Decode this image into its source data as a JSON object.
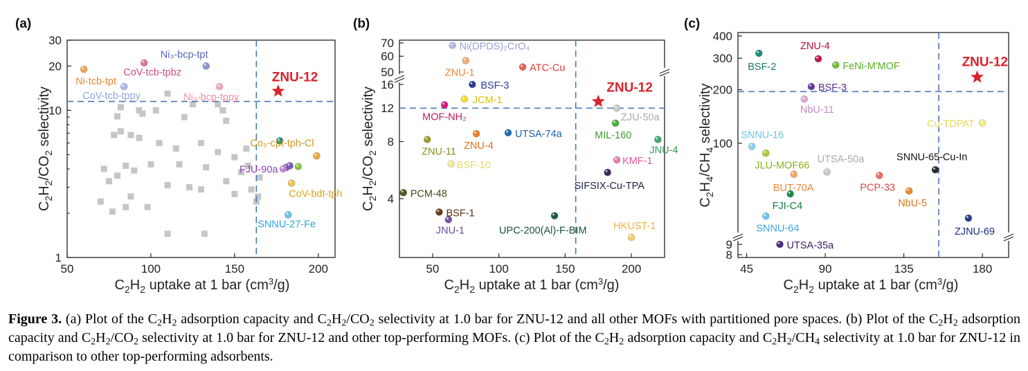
{
  "colors": {
    "dash": "#4a76b5",
    "star": "#d9232b",
    "square": "#c6c6c6",
    "axis": "#222222"
  },
  "caption": {
    "label": "Figure 3.",
    "s1": "(a) Plot of the C",
    "s2": "H",
    "s3": " adsorption capacity and C",
    "s4": "H",
    "s5": "/CO",
    "s6": " selectivity at 1.0 bar for ZNU-12 and all other MOFs with partitioned pore spaces. (b) Plot of the C",
    "s7": "H",
    "s8": " adsorption capacity and C",
    "s9": "H",
    "s10": "/CO",
    "s11": " selectivity at 1.0 bar for ZNU-12 and other top-performing MOFs. (c) Plot of the C",
    "s12": "H",
    "s13": " adsorption capacity and C",
    "s14": "H",
    "s15": "/CH",
    "s16": " selectivity at 1.0 bar for ZNU-12 in comparison to other top-performing adsorbents.",
    "sub2": "2",
    "sub4": "4"
  },
  "chart_data": [
    {
      "type": "scatter",
      "panel": "(a)",
      "xlabel": "C₂H₂ uptake at 1 bar (cm³/g)",
      "ylabel": "C₂H₂/CO₂ selectivity",
      "xlim": [
        50,
        210
      ],
      "ylim": [
        1,
        30
      ],
      "yscale": "log",
      "xticks": [
        "50",
        "100",
        "150",
        "200"
      ],
      "yticks": [
        "1",
        "10",
        "20",
        "30"
      ],
      "thresholds": {
        "x": 163,
        "y": 11.5
      },
      "highlight": {
        "name": "ZNU-12",
        "x": 176,
        "y": 13.5
      },
      "points": [
        {
          "name": "Ni-tcb-tpt",
          "x": 60,
          "y": 19,
          "color": "#f0a35a",
          "label": "Ni-tcb-tpt",
          "lc": "#e58a2e"
        },
        {
          "name": "CoV-tcb-tpbz",
          "x": 96,
          "y": 21,
          "color": "#e2739b",
          "label": "CoV-tcb-tpbz",
          "lc": "#d04e86"
        },
        {
          "name": "Ni3-bcp-tpt",
          "x": 133,
          "y": 20,
          "color": "#8f97d2",
          "label": "Ni₃-bcp-tpt",
          "lc": "#5a66b8"
        },
        {
          "name": "CoV-tcb-tppy",
          "x": 84,
          "y": 14.5,
          "color": "#a9bde6",
          "label": "CoV-tcb-tppy",
          "lc": "#8aa5dc"
        },
        {
          "name": "Ni3-bcp-tppy",
          "x": 141,
          "y": 14.5,
          "color": "#f5a8b8",
          "label": "Ni₃-bcp-tppy",
          "lc": "#f08ca3"
        },
        {
          "name": "Co3-cpt-tph-Cl",
          "x": 177,
          "y": 6.2,
          "color": "#1f8a78",
          "label": "",
          "lc": "#1f8a78"
        },
        {
          "name": "Co3-cpt-tph-Cl-b",
          "x": 199,
          "y": 4.9,
          "color": "#e9a93a",
          "label": "Co₃-cpt-tph-Cl",
          "lc": "#c99a1c"
        },
        {
          "name": "FJU-90a",
          "x": 181,
          "y": 4.1,
          "color": "#9b59b6",
          "label": "FJU-90a",
          "lc": "#8e44ad"
        },
        {
          "name": "FJU-90a-b",
          "x": 183,
          "y": 4.2,
          "color": "#7c5ab8",
          "label": "",
          "lc": "#7c5ab8"
        },
        {
          "name": "FJU-90a-c",
          "x": 179,
          "y": 4.0,
          "color": "#c08bd6",
          "label": "",
          "lc": "#c08bd6"
        },
        {
          "name": "FJU-90a-d",
          "x": 188,
          "y": 4.15,
          "color": "#8cc63f",
          "label": "",
          "lc": "#8cc63f"
        },
        {
          "name": "CoV-bdt-tph",
          "x": 184,
          "y": 3.2,
          "color": "#f2c14e",
          "label": "CoV-bdt-tph",
          "lc": "#d9a21b"
        },
        {
          "name": "SNNU-27-Fe",
          "x": 182,
          "y": 1.95,
          "color": "#6ec6e6",
          "label": "SNNU-27-Fe",
          "lc": "#2fa6d8"
        }
      ],
      "squares": [
        [
          110,
          13
        ],
        [
          125,
          11
        ],
        [
          140,
          11
        ],
        [
          82,
          10.5
        ],
        [
          93,
          10
        ],
        [
          103,
          10
        ],
        [
          143,
          10
        ],
        [
          80,
          9.1
        ],
        [
          95,
          9.5
        ],
        [
          120,
          9
        ],
        [
          145,
          8.5
        ],
        [
          82,
          7.2
        ],
        [
          88,
          6.8
        ],
        [
          78,
          6.8
        ],
        [
          93,
          6.5
        ],
        [
          105,
          6
        ],
        [
          130,
          6
        ],
        [
          115,
          5.5
        ],
        [
          157,
          5.5
        ],
        [
          140,
          5.2
        ],
        [
          150,
          4.8
        ],
        [
          72,
          4
        ],
        [
          85,
          4.2
        ],
        [
          100,
          4.3
        ],
        [
          117,
          4.3
        ],
        [
          133,
          4.1
        ],
        [
          158,
          4.2
        ],
        [
          90,
          3.9
        ],
        [
          80,
          3.6
        ],
        [
          154,
          3.8
        ],
        [
          165,
          3.5
        ],
        [
          75,
          3.3
        ],
        [
          145,
          3.3
        ],
        [
          110,
          3.1
        ],
        [
          123,
          3.0
        ],
        [
          130,
          2.9
        ],
        [
          160,
          2.9
        ],
        [
          88,
          2.6
        ],
        [
          150,
          2.7
        ],
        [
          164,
          2.6
        ],
        [
          70,
          2.4
        ],
        [
          163,
          2.4
        ],
        [
          85,
          2.2
        ],
        [
          98,
          2.2
        ],
        [
          77,
          2.05
        ],
        [
          110,
          1.45
        ],
        [
          132,
          1.45
        ]
      ]
    },
    {
      "type": "scatter",
      "panel": "(b)",
      "xlabel": "C₂H₂ uptake at 1 bar (cm³/g)",
      "ylabel": "C₂H₂/CO₂ selectivity",
      "xlim": [
        25,
        225
      ],
      "yscale": "log-broken",
      "xticks": [
        "50",
        "100",
        "150",
        "200"
      ],
      "yticks": [
        "4",
        "8",
        "12",
        "16",
        "50",
        "60",
        "70"
      ],
      "thresholds": {
        "x": 158,
        "y": 12
      },
      "highlight": {
        "name": "ZNU-12",
        "x": 175,
        "y": 13
      },
      "points": [
        {
          "name": "Ni(DPDS)2CrO4",
          "x": 65,
          "y": 68,
          "color": "#b4b8dc",
          "label": "Ni(DPDS)₂CrO₄",
          "lc": "#9aa0cf"
        },
        {
          "name": "ZNU-1",
          "x": 75,
          "y": 57,
          "color": "#f2ae74",
          "label": "ZNU-1",
          "lc": "#e8883a"
        },
        {
          "name": "ATC-Cu",
          "x": 118,
          "y": 53,
          "color": "#e8605a",
          "label": "ATC-Cu",
          "lc": "#dd3b32"
        },
        {
          "name": "BSF-3",
          "x": 80,
          "y": 16,
          "color": "#2c3e91",
          "label": "BSF-3",
          "lc": "#2c3e91"
        },
        {
          "name": "JCM-1",
          "x": 74,
          "y": 13.4,
          "color": "#f5e02c",
          "label": "JCM-1",
          "lc": "#d8c400"
        },
        {
          "name": "MOF-NH2",
          "x": 59,
          "y": 12.5,
          "color": "#d81b7b",
          "label": "MOF-NH₂",
          "lc": "#c2185b"
        },
        {
          "name": "ZJU-50a",
          "x": 189,
          "y": 12,
          "color": "#c8c8c8",
          "label": "ZJU-50a",
          "lc": "#aaaaaa"
        },
        {
          "name": "MIL-160",
          "x": 188,
          "y": 10,
          "color": "#4cae3a",
          "label": "MIL-160",
          "lc": "#3d9b2c"
        },
        {
          "name": "UTSA-74a",
          "x": 107,
          "y": 8.9,
          "color": "#1f6fb5",
          "label": "UTSA-74a",
          "lc": "#1f5ea8"
        },
        {
          "name": "ZNU-4",
          "x": 83,
          "y": 8.8,
          "color": "#e8832a",
          "label": "ZNU-4",
          "lc": "#e0701a"
        },
        {
          "name": "ZNU-11",
          "x": 46,
          "y": 8.2,
          "color": "#9e9a2c",
          "label": "ZNU-11",
          "lc": "#8e8a1c"
        },
        {
          "name": "JNU-4",
          "x": 220,
          "y": 8.2,
          "color": "#3aaa6a",
          "label": "JNU-4",
          "lc": "#2e9a5a"
        },
        {
          "name": "KMF-1",
          "x": 189,
          "y": 6.4,
          "color": "#e77fb0",
          "label": "KMF-1",
          "lc": "#e05a9c"
        },
        {
          "name": "BSF-10",
          "x": 64,
          "y": 6.1,
          "color": "#f3ec9a",
          "label": "BSF-10",
          "lc": "#e4d870"
        },
        {
          "name": "SIFSIX-Cu-TPA",
          "x": 182,
          "y": 5.5,
          "color": "#3a2a5a",
          "label": "SIFSIX-Cu-TPA",
          "lc": "#222244"
        },
        {
          "name": "PCM-48",
          "x": 28,
          "y": 4.3,
          "color": "#4d5a1f",
          "label": "PCM-48",
          "lc": "#3e4a14"
        },
        {
          "name": "BSF-1",
          "x": 55,
          "y": 3.4,
          "color": "#6d3b1a",
          "label": "BSF-1",
          "lc": "#5a2e10"
        },
        {
          "name": "JNU-1",
          "x": 62,
          "y": 3.1,
          "color": "#7a56a8",
          "label": "JNU-1",
          "lc": "#6a4a9a"
        },
        {
          "name": "UPC-200(Al)-F-BIM",
          "x": 142,
          "y": 3.25,
          "color": "#1a6040",
          "label": "UPC-200(Al)-F-BIM",
          "lc": "#145234"
        },
        {
          "name": "HKUST-1",
          "x": 200,
          "y": 2.5,
          "color": "#f3cf78",
          "label": "HKUST-1",
          "lc": "#e8b53e"
        }
      ]
    },
    {
      "type": "scatter",
      "panel": "(c)",
      "xlabel": "C₂H₂ uptake at 1 bar (cm³/g)",
      "ylabel": "C₂H₄/CH₄ selectivity",
      "xlim": [
        40,
        195
      ],
      "yscale": "log-broken",
      "xticks": [
        "45",
        "90",
        "135",
        "180"
      ],
      "yticks": [
        "8",
        "9",
        "100",
        "200",
        "300",
        "400"
      ],
      "thresholds": {
        "x": 155,
        "y": 195
      },
      "highlight": {
        "name": "ZNU-12",
        "x": 177,
        "y": 235
      },
      "points": [
        {
          "name": "BSF-2",
          "x": 52,
          "y": 320,
          "color": "#1f8a78",
          "label": "BSF-2",
          "lc": "#1a7a6a"
        },
        {
          "name": "ZNU-4",
          "x": 86,
          "y": 298,
          "color": "#c0184a",
          "label": "ZNU-4",
          "lc": "#b0103f"
        },
        {
          "name": "FeNi-M'MOF",
          "x": 96,
          "y": 275,
          "color": "#6fbf3a",
          "label": "FeNi-M'MOF",
          "lc": "#5aae28"
        },
        {
          "name": "BSF-3",
          "x": 82,
          "y": 208,
          "color": "#6a3a9a",
          "label": "BSF-3",
          "lc": "#5a2c8a"
        },
        {
          "name": "NbU-11",
          "x": 78,
          "y": 177,
          "color": "#d8a8d8",
          "label": "NbU-11",
          "lc": "#c58cc5"
        },
        {
          "name": "Cu-TDPAT",
          "x": 180,
          "y": 130,
          "color": "#f3ee8a",
          "label": "Cu-TDPAT",
          "lc": "#e3da50"
        },
        {
          "name": "SNNU-16",
          "x": 48,
          "y": 96,
          "color": "#8ed0e8",
          "label": "SNNU-16",
          "lc": "#6ec0dc"
        },
        {
          "name": "JLU-MOF66",
          "x": 56,
          "y": 88,
          "color": "#a8cc3a",
          "label": "JLU-MOF66",
          "lc": "#8ab018"
        },
        {
          "name": "UTSA-50a",
          "x": 91,
          "y": 69,
          "color": "#c8c8c8",
          "label": "UTSA-50a",
          "lc": "#a8a8a8"
        },
        {
          "name": "SNNU-65-Cu-In",
          "x": 153,
          "y": 71,
          "color": "#2a2a2a",
          "label": "SNNU-65-Cu-In",
          "lc": "#111111"
        },
        {
          "name": "BUT-70A",
          "x": 72,
          "y": 67,
          "color": "#f3a868",
          "label": "BUT-70A",
          "lc": "#e88a3a"
        },
        {
          "name": "PCP-33",
          "x": 121,
          "y": 66,
          "color": "#ee6b6b",
          "label": "PCP-33",
          "lc": "#dd4444"
        },
        {
          "name": "NbU-5",
          "x": 138,
          "y": 54,
          "color": "#e88a2a",
          "label": "NbU-5",
          "lc": "#d8741a"
        },
        {
          "name": "FJI-C4",
          "x": 70,
          "y": 52,
          "color": "#1a8a4a",
          "label": "FJI-C4",
          "lc": "#137a3c"
        },
        {
          "name": "SNNU-64",
          "x": 56,
          "y": 39,
          "color": "#6ec6f0",
          "label": "SNNU-64",
          "lc": "#3aa8e0"
        },
        {
          "name": "ZJNU-69",
          "x": 172,
          "y": 38,
          "color": "#2a3a8a",
          "label": "ZJNU-69",
          "lc": "#1a2a7a"
        },
        {
          "name": "UTSA-35a",
          "x": 64,
          "y": 9,
          "color": "#4a2a7a",
          "label": "UTSA-35a",
          "lc": "#3a1a6a"
        }
      ]
    }
  ]
}
